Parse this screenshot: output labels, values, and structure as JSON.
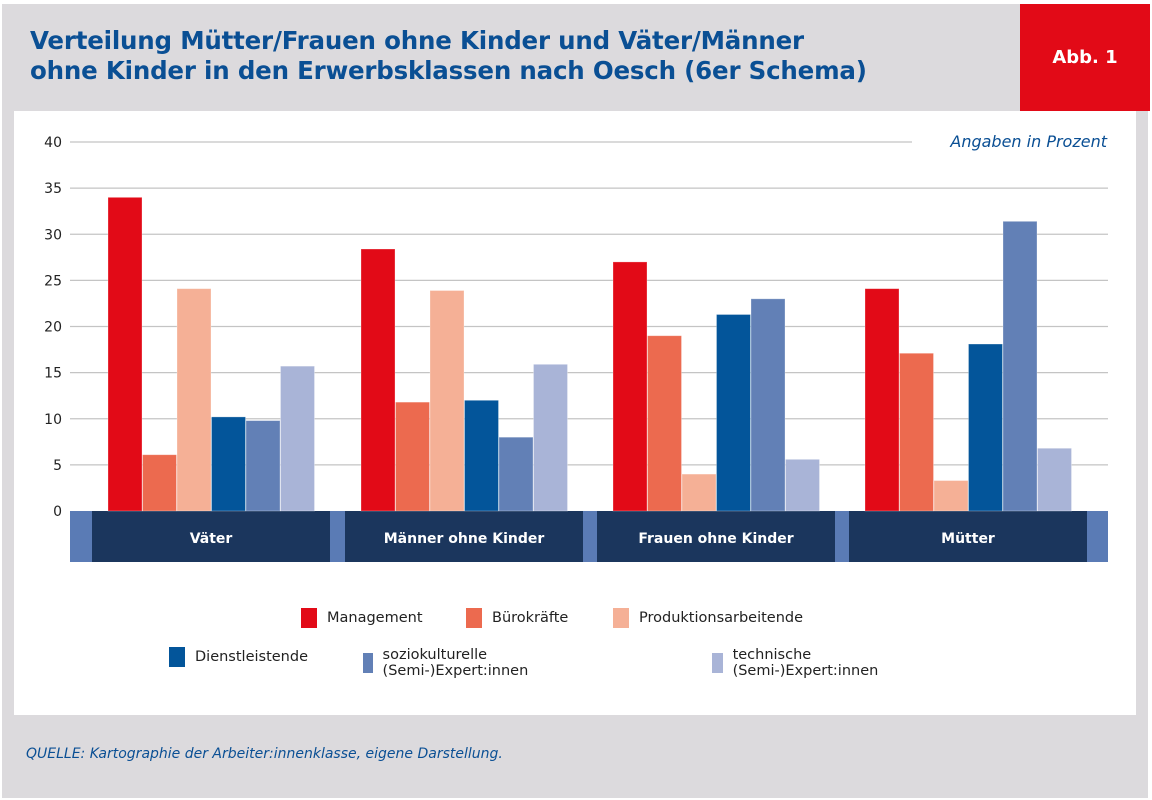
{
  "header": {
    "title_line1": "Verteilung Mütter/Frauen ohne Kinder und Väter/Männer",
    "title_line2": "ohne Kinder in den Erwerbsklassen nach Oesch (6er Schema)",
    "badge": "Abb. 1"
  },
  "footer": {
    "source": "QUELLE: Kartographie der Arbeiter:innenklasse, eigene Darstellung."
  },
  "colors": {
    "title": "#0a4f94",
    "badge": "#e20a17",
    "frame": "#dcdadd",
    "category_band": "#1b365d",
    "category_band_edge": "#5a7bb5"
  },
  "chart_data": {
    "type": "bar",
    "title": "Verteilung Mütter/Frauen ohne Kinder und Väter/Männer ohne Kinder in den Erwerbsklassen nach Oesch (6er Schema)",
    "annotation": "Angaben in Prozent",
    "xlabel": "",
    "ylabel": "",
    "ylim": [
      0,
      40
    ],
    "yticks": [
      0,
      5,
      10,
      15,
      20,
      25,
      30,
      35,
      40
    ],
    "grid": true,
    "legend_position": "bottom",
    "categories": [
      "Väter",
      "Männer ohne Kinder",
      "Frauen ohne Kinder",
      "Mütter"
    ],
    "series": [
      {
        "name": "Management",
        "color": "#e20a17",
        "values": [
          34.0,
          28.4,
          27.0,
          24.1
        ]
      },
      {
        "name": "Bürokräfte",
        "color": "#ec6a4f",
        "values": [
          6.1,
          11.8,
          19.0,
          17.1
        ]
      },
      {
        "name": "Produktionsarbeitende",
        "color": "#f5b096",
        "values": [
          24.1,
          23.9,
          4.0,
          3.3
        ]
      },
      {
        "name": "Dienstleistende",
        "color": "#03559a",
        "values": [
          10.2,
          12.0,
          21.3,
          18.1
        ]
      },
      {
        "name": "soziokulturelle (Semi-)Expert:innen",
        "color": "#6280b6",
        "values": [
          9.8,
          8.0,
          23.0,
          31.4
        ]
      },
      {
        "name": "technische (Semi-)Expert:innen",
        "color": "#a9b4d7",
        "values": [
          15.7,
          15.9,
          5.6,
          6.8
        ]
      }
    ]
  }
}
